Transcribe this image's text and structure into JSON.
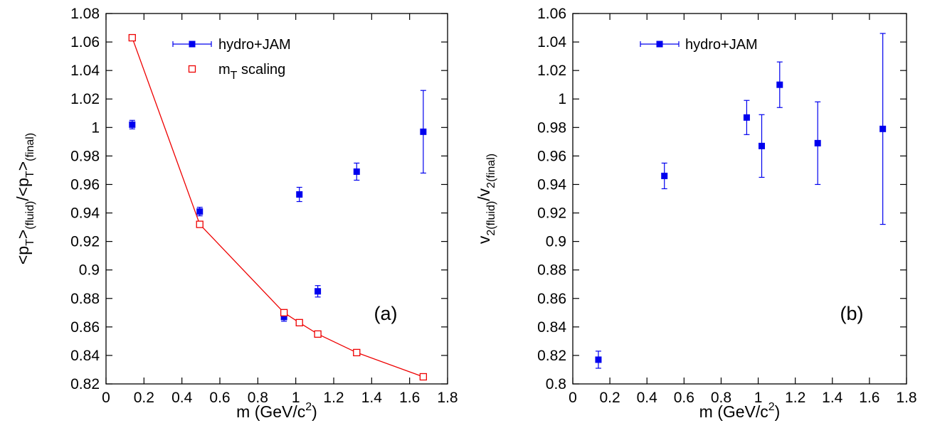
{
  "chart_data": [
    {
      "panel": "(a)",
      "type": "scatter",
      "xlabel": "m (GeV/c^2)",
      "xlim": [
        0,
        1.8
      ],
      "xticks": [
        0,
        0.2,
        0.4,
        0.6,
        0.8,
        1,
        1.2,
        1.4,
        1.6,
        1.8
      ],
      "xtick_labels": [
        "0",
        "0.2",
        "0.4",
        "0.6",
        "0.8",
        "1",
        "1.2",
        "1.4",
        "1.6",
        "1.8"
      ],
      "ylabel": "<pT>(fluid)/<pT>(final)",
      "ylim": [
        0.82,
        1.08
      ],
      "yticks": [
        0.82,
        0.84,
        0.86,
        0.88,
        0.9,
        0.92,
        0.94,
        0.96,
        0.98,
        1,
        1.02,
        1.04,
        1.06,
        1.08
      ],
      "ytick_labels": [
        "0.82",
        "0.84",
        "0.86",
        "0.88",
        "0.9",
        "0.92",
        "0.94",
        "0.96",
        "0.98",
        "1",
        "1.02",
        "1.04",
        "1.06",
        "1.08"
      ],
      "legend_position": "top-center",
      "grid": false,
      "series": [
        {
          "name": "hydro+JAM",
          "marker": "filled-square",
          "color": "#0000ee",
          "x": [
            0.138,
            0.494,
            0.938,
            1.019,
            1.116,
            1.321,
            1.672
          ],
          "y": [
            1.002,
            0.941,
            0.867,
            0.953,
            0.885,
            0.969,
            0.997
          ],
          "yerr": [
            0.003,
            0.003,
            0.003,
            0.005,
            0.004,
            0.006,
            0.029
          ]
        },
        {
          "name": "m_T scaling",
          "marker": "open-square-line",
          "color": "#ee0000",
          "x": [
            0.138,
            0.494,
            0.938,
            1.019,
            1.116,
            1.321,
            1.672
          ],
          "y": [
            1.063,
            0.932,
            0.87,
            0.863,
            0.855,
            0.842,
            0.825
          ]
        }
      ]
    },
    {
      "panel": "(b)",
      "type": "scatter",
      "xlabel": "m (GeV/c^2)",
      "xlim": [
        0,
        1.8
      ],
      "xticks": [
        0,
        0.2,
        0.4,
        0.6,
        0.8,
        1,
        1.2,
        1.4,
        1.6,
        1.8
      ],
      "xtick_labels": [
        "0",
        "0.2",
        "0.4",
        "0.6",
        "0.8",
        "1",
        "1.2",
        "1.4",
        "1.6",
        "1.8"
      ],
      "ylabel": "v2(fluid)/v2(final)",
      "ylim": [
        0.8,
        1.06
      ],
      "yticks": [
        0.8,
        0.82,
        0.84,
        0.86,
        0.88,
        0.9,
        0.92,
        0.94,
        0.96,
        0.98,
        1,
        1.02,
        1.04,
        1.06
      ],
      "ytick_labels": [
        "0.8",
        "0.82",
        "0.84",
        "0.86",
        "0.88",
        "0.9",
        "0.92",
        "0.94",
        "0.96",
        "0.98",
        "1",
        "1.02",
        "1.04",
        "1.06"
      ],
      "legend_position": "top-center",
      "grid": false,
      "series": [
        {
          "name": "hydro+JAM",
          "marker": "filled-square",
          "color": "#0000ee",
          "x": [
            0.138,
            0.494,
            0.938,
            1.019,
            1.116,
            1.321,
            1.672
          ],
          "y": [
            0.817,
            0.946,
            0.987,
            0.967,
            1.01,
            0.969,
            0.979
          ],
          "yerr": [
            0.006,
            0.009,
            0.012,
            0.022,
            0.016,
            0.029,
            0.067
          ]
        }
      ]
    }
  ]
}
